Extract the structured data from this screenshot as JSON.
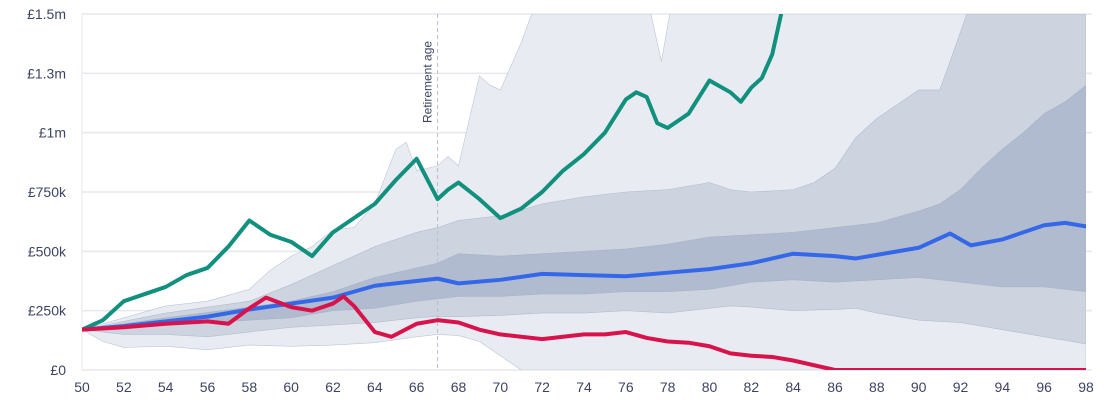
{
  "chart_data": {
    "type": "area",
    "title": "",
    "xlabel": "",
    "ylabel": "",
    "xlim": [
      50,
      98
    ],
    "ylim": [
      0,
      1500000
    ],
    "grid": true,
    "x_ticks": [
      50,
      52,
      54,
      56,
      58,
      60,
      62,
      64,
      66,
      68,
      70,
      72,
      74,
      76,
      78,
      80,
      82,
      84,
      86,
      88,
      90,
      92,
      94,
      96,
      98
    ],
    "y_ticks": [
      {
        "value": 0,
        "label": "£0"
      },
      {
        "value": 250000,
        "label": "£250k"
      },
      {
        "value": 500000,
        "label": "£500k"
      },
      {
        "value": 750000,
        "label": "£750k"
      },
      {
        "value": 1000000,
        "label": "£1m"
      },
      {
        "value": 1250000,
        "label": "£1.3m"
      },
      {
        "value": 1500000,
        "label": "£1.5m"
      }
    ],
    "annotation": {
      "label": "Retirement age",
      "x": 67
    },
    "colors": {
      "band_outer": "#e8ecf2",
      "band_mid": "#cdd4df",
      "band_inner": "#b0bbcf",
      "band_edge": "#9aa6c0",
      "green": "#12907e",
      "blue": "#3468e8",
      "red": "#d8134b",
      "grid": "#e6e8ee"
    },
    "bands": [
      {
        "name": "outer",
        "upper": [
          [
            50,
            170
          ],
          [
            52,
            220
          ],
          [
            54,
            270
          ],
          [
            56,
            290
          ],
          [
            58,
            340
          ],
          [
            59,
            420
          ],
          [
            60,
            480
          ],
          [
            61,
            520
          ],
          [
            62,
            590
          ],
          [
            63,
            600
          ],
          [
            64,
            700
          ],
          [
            65,
            930
          ],
          [
            65.5,
            960
          ],
          [
            66,
            840
          ],
          [
            67,
            860
          ],
          [
            67.5,
            900
          ],
          [
            68,
            860
          ],
          [
            68.5,
            1050
          ],
          [
            69,
            1240
          ],
          [
            69.5,
            1200
          ],
          [
            70,
            1180
          ],
          [
            70.5,
            1280
          ],
          [
            71,
            1380
          ],
          [
            71.5,
            1500
          ],
          [
            77.2,
            1500
          ],
          [
            77.7,
            1300
          ],
          [
            78.1,
            1500
          ],
          [
            98,
            1500
          ]
        ],
        "lower": [
          [
            50,
            170
          ],
          [
            51,
            120
          ],
          [
            52,
            95
          ],
          [
            54,
            100
          ],
          [
            56,
            85
          ],
          [
            58,
            105
          ],
          [
            60,
            100
          ],
          [
            62,
            105
          ],
          [
            64,
            115
          ],
          [
            66,
            140
          ],
          [
            67,
            150
          ],
          [
            68,
            145
          ],
          [
            69,
            120
          ],
          [
            70,
            60
          ],
          [
            71,
            0
          ],
          [
            98,
            0
          ]
        ]
      },
      {
        "name": "mid",
        "upper": [
          [
            50,
            170
          ],
          [
            54,
            240
          ],
          [
            58,
            290
          ],
          [
            60,
            360
          ],
          [
            62,
            440
          ],
          [
            64,
            520
          ],
          [
            66,
            580
          ],
          [
            67,
            600
          ],
          [
            68,
            630
          ],
          [
            70,
            650
          ],
          [
            72,
            700
          ],
          [
            74,
            730
          ],
          [
            76,
            750
          ],
          [
            78,
            760
          ],
          [
            80,
            790
          ],
          [
            81,
            760
          ],
          [
            82,
            750
          ],
          [
            84,
            760
          ],
          [
            85,
            790
          ],
          [
            86,
            850
          ],
          [
            87,
            980
          ],
          [
            88,
            1060
          ],
          [
            89,
            1120
          ],
          [
            90,
            1180
          ],
          [
            91,
            1180
          ],
          [
            91.5,
            1300
          ],
          [
            92.3,
            1500
          ],
          [
            98,
            1500
          ]
        ],
        "lower": [
          [
            50,
            170
          ],
          [
            52,
            150
          ],
          [
            54,
            150
          ],
          [
            56,
            140
          ],
          [
            58,
            160
          ],
          [
            60,
            180
          ],
          [
            62,
            190
          ],
          [
            64,
            200
          ],
          [
            66,
            220
          ],
          [
            67,
            225
          ],
          [
            68,
            225
          ],
          [
            70,
            230
          ],
          [
            72,
            240
          ],
          [
            74,
            240
          ],
          [
            76,
            250
          ],
          [
            78,
            240
          ],
          [
            80,
            260
          ],
          [
            81,
            270
          ],
          [
            82,
            265
          ],
          [
            84,
            250
          ],
          [
            86,
            255
          ],
          [
            87,
            260
          ],
          [
            88,
            240
          ],
          [
            90,
            210
          ],
          [
            92,
            200
          ],
          [
            94,
            170
          ],
          [
            96,
            140
          ],
          [
            98,
            110
          ]
        ]
      },
      {
        "name": "inner",
        "upper": [
          [
            50,
            170
          ],
          [
            54,
            220
          ],
          [
            58,
            265
          ],
          [
            60,
            290
          ],
          [
            62,
            330
          ],
          [
            64,
            390
          ],
          [
            66,
            430
          ],
          [
            67,
            450
          ],
          [
            68,
            490
          ],
          [
            70,
            480
          ],
          [
            72,
            490
          ],
          [
            74,
            500
          ],
          [
            76,
            510
          ],
          [
            78,
            530
          ],
          [
            80,
            560
          ],
          [
            82,
            570
          ],
          [
            84,
            580
          ],
          [
            86,
            600
          ],
          [
            88,
            620
          ],
          [
            90,
            670
          ],
          [
            91,
            700
          ],
          [
            92,
            760
          ],
          [
            93,
            850
          ],
          [
            94,
            930
          ],
          [
            95,
            1000
          ],
          [
            96,
            1080
          ],
          [
            97,
            1130
          ],
          [
            98,
            1200
          ]
        ],
        "lower": [
          [
            50,
            170
          ],
          [
            54,
            190
          ],
          [
            58,
            210
          ],
          [
            60,
            220
          ],
          [
            62,
            250
          ],
          [
            64,
            260
          ],
          [
            66,
            290
          ],
          [
            67,
            300
          ],
          [
            68,
            310
          ],
          [
            70,
            310
          ],
          [
            72,
            320
          ],
          [
            74,
            320
          ],
          [
            76,
            330
          ],
          [
            78,
            330
          ],
          [
            80,
            340
          ],
          [
            82,
            370
          ],
          [
            84,
            380
          ],
          [
            86,
            370
          ],
          [
            88,
            380
          ],
          [
            90,
            390
          ],
          [
            92,
            370
          ],
          [
            94,
            350
          ],
          [
            96,
            350
          ],
          [
            97,
            340
          ],
          [
            98,
            330
          ]
        ]
      }
    ],
    "series": [
      {
        "name": "green",
        "values_k": [
          [
            50,
            170
          ],
          [
            51,
            210
          ],
          [
            52,
            290
          ],
          [
            53,
            320
          ],
          [
            54,
            350
          ],
          [
            55,
            400
          ],
          [
            56,
            430
          ],
          [
            57,
            520
          ],
          [
            58,
            630
          ],
          [
            59,
            570
          ],
          [
            60,
            540
          ],
          [
            61,
            480
          ],
          [
            62,
            580
          ],
          [
            63,
            640
          ],
          [
            64,
            700
          ],
          [
            65,
            800
          ],
          [
            66,
            890
          ],
          [
            67,
            720
          ],
          [
            67.5,
            760
          ],
          [
            68,
            790
          ],
          [
            69,
            720
          ],
          [
            70,
            640
          ],
          [
            71,
            680
          ],
          [
            72,
            750
          ],
          [
            73,
            840
          ],
          [
            74,
            910
          ],
          [
            75,
            1000
          ],
          [
            76,
            1140
          ],
          [
            76.5,
            1170
          ],
          [
            77,
            1150
          ],
          [
            77.5,
            1040
          ],
          [
            78,
            1020
          ],
          [
            79,
            1080
          ],
          [
            80,
            1220
          ],
          [
            81,
            1170
          ],
          [
            81.5,
            1130
          ],
          [
            82,
            1190
          ],
          [
            82.5,
            1230
          ],
          [
            83,
            1330
          ],
          [
            83.5,
            1530
          ]
        ]
      },
      {
        "name": "blue",
        "values_k": [
          [
            50,
            170
          ],
          [
            52,
            185
          ],
          [
            54,
            205
          ],
          [
            56,
            225
          ],
          [
            58,
            255
          ],
          [
            60,
            280
          ],
          [
            62,
            305
          ],
          [
            64,
            355
          ],
          [
            66,
            375
          ],
          [
            67,
            385
          ],
          [
            68,
            365
          ],
          [
            70,
            380
          ],
          [
            72,
            405
          ],
          [
            74,
            400
          ],
          [
            76,
            395
          ],
          [
            78,
            410
          ],
          [
            80,
            425
          ],
          [
            82,
            450
          ],
          [
            84,
            490
          ],
          [
            86,
            480
          ],
          [
            87,
            470
          ],
          [
            88,
            485
          ],
          [
            90,
            515
          ],
          [
            91.5,
            575
          ],
          [
            92.5,
            525
          ],
          [
            94,
            550
          ],
          [
            96,
            610
          ],
          [
            97,
            620
          ],
          [
            98,
            605
          ]
        ]
      },
      {
        "name": "red",
        "values_k": [
          [
            50,
            170
          ],
          [
            52,
            180
          ],
          [
            54,
            195
          ],
          [
            56,
            205
          ],
          [
            57,
            195
          ],
          [
            58,
            260
          ],
          [
            58.8,
            305
          ],
          [
            60,
            265
          ],
          [
            61,
            250
          ],
          [
            62,
            280
          ],
          [
            62.5,
            310
          ],
          [
            63,
            270
          ],
          [
            64,
            160
          ],
          [
            64.8,
            140
          ],
          [
            66,
            195
          ],
          [
            67,
            210
          ],
          [
            68,
            200
          ],
          [
            69,
            170
          ],
          [
            70,
            150
          ],
          [
            72,
            130
          ],
          [
            74,
            150
          ],
          [
            75,
            150
          ],
          [
            76,
            160
          ],
          [
            77,
            135
          ],
          [
            78,
            120
          ],
          [
            79,
            115
          ],
          [
            80,
            100
          ],
          [
            81,
            70
          ],
          [
            82,
            60
          ],
          [
            83,
            55
          ],
          [
            84,
            40
          ],
          [
            85,
            20
          ],
          [
            86,
            0
          ],
          [
            98,
            0
          ]
        ]
      }
    ]
  }
}
